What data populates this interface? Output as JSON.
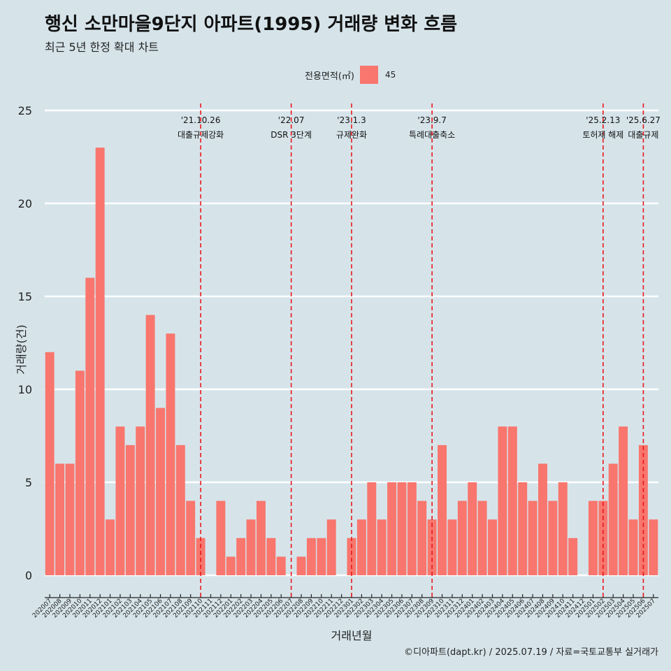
{
  "chart_data": {
    "type": "bar",
    "title": "행신 소만마을9단지 아파트(1995) 거래량 변화 흐름",
    "subtitle": "최근 5년 한정 확대 차트",
    "xlabel": "거래년월",
    "ylabel": "거래량(건)",
    "ylim": [
      0,
      25
    ],
    "yticks": [
      0,
      5,
      10,
      15,
      20,
      25
    ],
    "grid": "horizontal",
    "legend": {
      "title": "전용면적(㎡)",
      "placement": "top",
      "entries": [
        {
          "label": "45",
          "color": "#f8766d"
        }
      ]
    },
    "categories": [
      "202007",
      "202008",
      "202009",
      "202010",
      "202011",
      "202012",
      "202101",
      "202102",
      "202103",
      "202104",
      "202105",
      "202106",
      "202107",
      "202108",
      "202109",
      "202110",
      "202111",
      "202112",
      "202201",
      "202202",
      "202203",
      "202204",
      "202205",
      "202206",
      "202207",
      "202208",
      "202209",
      "202210",
      "202211",
      "202212",
      "202301",
      "202302",
      "202303",
      "202304",
      "202305",
      "202306",
      "202307",
      "202308",
      "202309",
      "202310",
      "202311",
      "202312",
      "202401",
      "202402",
      "202403",
      "202404",
      "202405",
      "202406",
      "202407",
      "202408",
      "202409",
      "202410",
      "202411",
      "202412",
      "202501",
      "202502",
      "202503",
      "202504",
      "202505",
      "202506",
      "202507"
    ],
    "series": [
      {
        "color": "#f8766d",
        "values": [
          12,
          6,
          6,
          11,
          16,
          23,
          3,
          8,
          7,
          8,
          14,
          9,
          13,
          7,
          4,
          2,
          0,
          4,
          1,
          2,
          3,
          4,
          2,
          1,
          0,
          1,
          2,
          2,
          3,
          0,
          2,
          3,
          5,
          3,
          5,
          5,
          5,
          4,
          3,
          7,
          3,
          4,
          5,
          4,
          3,
          8,
          8,
          5,
          4,
          6,
          4,
          5,
          2,
          0,
          4,
          4,
          6,
          8,
          3,
          7,
          3
        ]
      }
    ],
    "annotations": [
      {
        "x": "202110",
        "date": "'21.10.26",
        "label": "대출규제강화"
      },
      {
        "x": "202207",
        "date": "'22.07",
        "label": "DSR 3단계"
      },
      {
        "x": "202301",
        "date": "'23.1.3",
        "label": "규제완화"
      },
      {
        "x": "202309",
        "date": "'23.9.7",
        "label": "특례대출축소"
      },
      {
        "x": "202502",
        "date": "'25.2.13",
        "label": "토허제 해제"
      },
      {
        "x": "202506",
        "date": "'25.6.27",
        "label": "대출규제"
      }
    ],
    "annotation_color": "#e8191b"
  },
  "caption": "©디아파트(dapt.kr) / 2025.07.19 / 자료=국토교통부 실거래가"
}
